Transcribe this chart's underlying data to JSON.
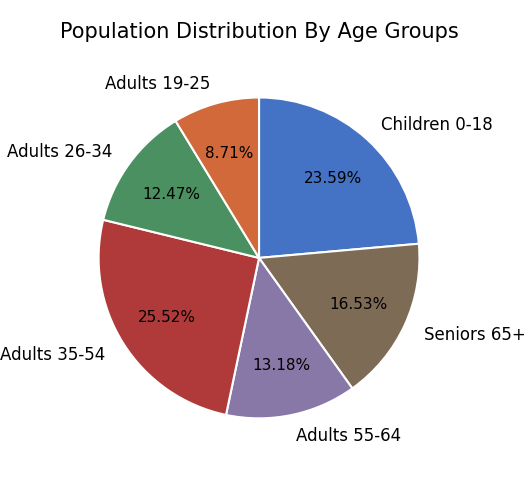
{
  "title": "Population Distribution By Age Groups",
  "labels": [
    "Children 0-18",
    "Seniors 65+",
    "Adults 55-64",
    "Adults 35-54",
    "Adults 26-34",
    "Adults 19-25"
  ],
  "values": [
    23.59,
    16.53,
    13.18,
    25.52,
    12.47,
    8.71
  ],
  "colors": [
    "#4472c4",
    "#7d6b56",
    "#8878a8",
    "#b03a3a",
    "#4a9060",
    "#d2693a"
  ],
  "startangle": 90,
  "clockwise": true,
  "title_fontsize": 15,
  "label_fontsize": 12,
  "autopct_fontsize": 11
}
